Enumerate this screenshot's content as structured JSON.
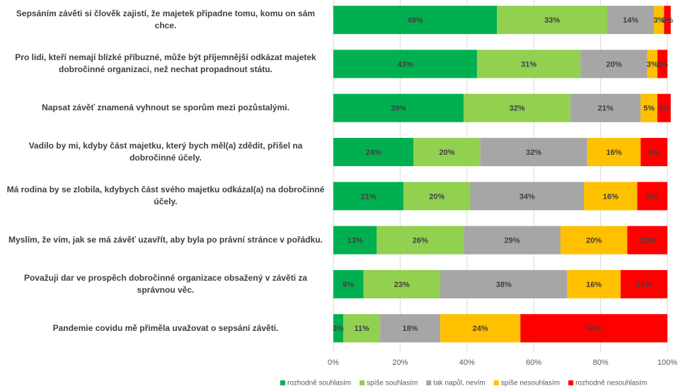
{
  "chart_data": {
    "type": "stacked-bar-horizontal",
    "categories": [
      "Sepsáním závěti si člověk zajistí, že majetek připadne tomu, komu on sám chce.",
      "Pro lidi, kteří nemají blízké příbuzné, může být příjemnější odkázat majetek dobročinné organizaci, než nechat propadnout státu.",
      "Napsat závěť znamená vyhnout se sporům mezi pozůstalými.",
      "Vadilo by mi, kdyby část majetku, který bych měl(a) zdědit, přišel na dobročinné účely.",
      "Má rodina by se zlobila, kdybych část svého majetku odkázal(a) na dobročinné účely.",
      "Myslím, že vím, jak se má závěť uzavřít, aby byla po právní stránce v pořádku.",
      "Považuji dar ve prospěch dobročinné organizace obsažený v závěti za správnou věc.",
      "Pandemie covidu mě přiměla uvažovat o sepsání závěti."
    ],
    "series": [
      {
        "name": "rozhodně souhlasím",
        "color": "#00b050",
        "values": [
          49,
          43,
          39,
          24,
          21,
          13,
          9,
          3
        ],
        "value_labels": [
          "49%",
          "43%",
          "39%",
          "24%",
          "21%",
          "13%",
          "9%",
          "3%"
        ]
      },
      {
        "name": "spíše souhlasím",
        "color": "#92d050",
        "values": [
          33,
          31,
          32,
          20,
          20,
          26,
          23,
          11
        ],
        "value_labels": [
          "33%",
          "31%",
          "32%",
          "20%",
          "20%",
          "26%",
          "23%",
          "11%"
        ]
      },
      {
        "name": "tak napůl, nevím",
        "color": "#a6a6a6",
        "values": [
          14,
          20,
          21,
          32,
          34,
          29,
          38,
          18
        ],
        "value_labels": [
          "14%",
          "20%",
          "21%",
          "32%",
          "34%",
          "29%",
          "38%",
          "18%"
        ]
      },
      {
        "name": "spíše nesouhlasím",
        "color": "#ffc000",
        "values": [
          3,
          3,
          5,
          16,
          16,
          20,
          16,
          24
        ],
        "value_labels": [
          "3%",
          "3%",
          "5%",
          "16%",
          "16%",
          "20%",
          "16%",
          "24%"
        ]
      },
      {
        "name": "rozhodně nesouhlasím",
        "color": "#ff0000",
        "values": [
          2,
          3,
          4,
          8,
          9,
          12,
          14,
          44
        ],
        "value_labels": [
          "2%",
          "3%",
          "4%",
          "8%",
          "9%",
          "12%",
          "14%",
          "44%"
        ]
      }
    ],
    "xlim": [
      0,
      100
    ],
    "xticks": [
      {
        "value": 0,
        "label": "0%"
      },
      {
        "value": 20,
        "label": "20%"
      },
      {
        "value": 40,
        "label": "40%"
      },
      {
        "value": 60,
        "label": "60%"
      },
      {
        "value": 80,
        "label": "80%"
      },
      {
        "value": 100,
        "label": "100%"
      }
    ],
    "grid": true,
    "legend": "bottom"
  }
}
